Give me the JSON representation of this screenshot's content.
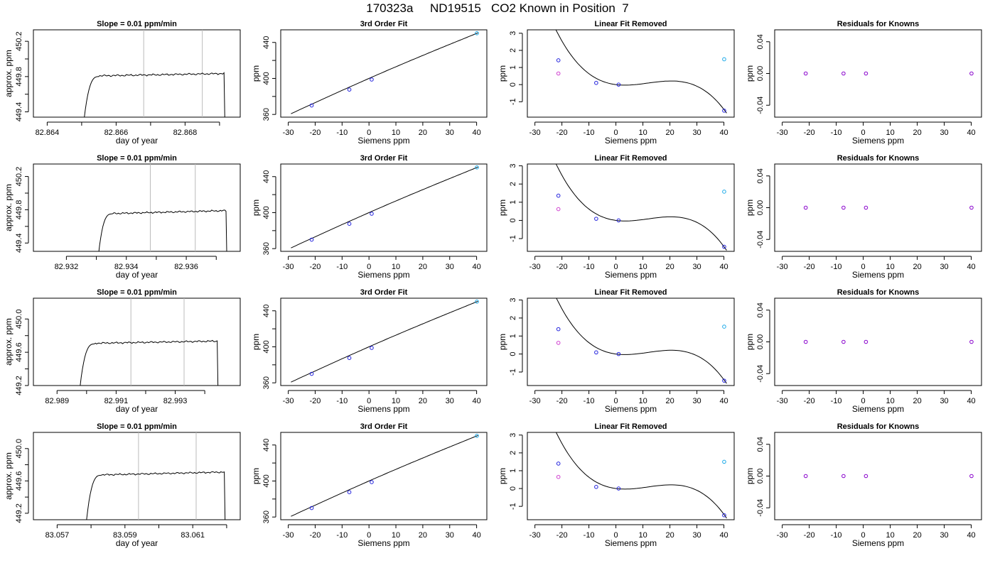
{
  "page": {
    "title": "170323a     ND19515   CO2 Known in Position  7"
  },
  "colors": {
    "axis": "#000000",
    "line": "#000000",
    "vline": "#bbbbbb",
    "point_blue": "#2222dd",
    "point_magenta": "#d040d0",
    "point_cyan": "#18a8e8",
    "point_purple": "#8800cc"
  },
  "chart_data": [
    {
      "panel": "timeseries-1",
      "type": "line",
      "title": "Slope =  0.01  ppm/min",
      "xlabel": "day of year",
      "ylabel": "approx. ppm",
      "xlim": [
        82.8636,
        82.8696
      ],
      "ylim": [
        449.34,
        450.33
      ],
      "xticks": [
        82.864,
        82.865,
        82.866,
        82.867,
        82.868,
        82.869
      ],
      "xtick_labels": [
        "82.864",
        "",
        "82.866",
        "",
        "82.868",
        ""
      ],
      "yticks": [
        449.4,
        449.6,
        449.8,
        450.0,
        450.2
      ],
      "ytick_labels": [
        "449.4",
        "",
        "449.8",
        "",
        "450.2"
      ],
      "vlines": [
        82.8668,
        82.8685
      ],
      "x_start": 82.865,
      "x_end": 82.8692,
      "plateau": 449.82,
      "drift": 0.03,
      "grid": false
    },
    {
      "panel": "fit-1",
      "type": "scatter",
      "title": "3rd Order Fit",
      "xlabel": "Siemens ppm",
      "ylabel": "ppm",
      "xlim": [
        -32.8,
        43.8
      ],
      "ylim": [
        357,
        454
      ],
      "xticks": [
        -30,
        -20,
        -10,
        0,
        10,
        20,
        30,
        40
      ],
      "yticks": [
        360,
        380,
        400,
        420,
        440
      ],
      "ytick_labels": [
        "360",
        "",
        "400",
        "",
        "440"
      ],
      "points": [
        {
          "x": -21.3,
          "y": 370.0,
          "color": "blue"
        },
        {
          "x": -7.3,
          "y": 387.6,
          "color": "blue"
        },
        {
          "x": 1.0,
          "y": 398.8,
          "color": "blue"
        },
        {
          "x": 40.1,
          "y": 450.2,
          "color": "cyan"
        }
      ],
      "curve": {
        "x0": -29.0,
        "x1": 40.5,
        "y_at_x0": 360.8,
        "y_at_x1": 450.6
      }
    },
    {
      "panel": "linear-removed-1",
      "type": "scatter",
      "title": "Linear Fit Removed",
      "xlabel": "Siemens ppm",
      "ylabel": "ppm",
      "xlim": [
        -32.8,
        43.8
      ],
      "ylim": [
        -1.9,
        3.2
      ],
      "xticks": [
        -30,
        -20,
        -10,
        0,
        10,
        20,
        30,
        40
      ],
      "yticks": [
        -1,
        0,
        1,
        2,
        3
      ],
      "points": [
        {
          "x": -21.3,
          "y": 1.42,
          "color": "blue"
        },
        {
          "x": -21.3,
          "y": 0.65,
          "color": "magenta"
        },
        {
          "x": -7.3,
          "y": 0.1,
          "color": "blue"
        },
        {
          "x": 1.0,
          "y": 0.0,
          "color": "blue"
        },
        {
          "x": 40.1,
          "y": 1.48,
          "color": "cyan"
        },
        {
          "x": 40.1,
          "y": -1.52,
          "color": "blue"
        }
      ],
      "curve": {
        "x0": -29.0,
        "x1": 41.0,
        "coef": [
          0.0,
          -0.0198,
          0.00345,
          -9.65e-05
        ]
      }
    },
    {
      "panel": "residuals-1",
      "type": "scatter",
      "title": "Residuals for Knowns",
      "xlabel": "Siemens ppm",
      "ylabel": "ppm",
      "xlim": [
        -32.8,
        43.8
      ],
      "ylim": [
        -0.055,
        0.055
      ],
      "xticks": [
        -30,
        -20,
        -10,
        0,
        10,
        20,
        30,
        40
      ],
      "yticks": [
        -0.04,
        0.0,
        0.04
      ],
      "ytick_labels": [
        "-0.04",
        "0.00",
        "0.04"
      ],
      "points": [
        {
          "x": -21.3,
          "y": 0.0,
          "color": "purple"
        },
        {
          "x": -7.3,
          "y": 0.0,
          "color": "purple"
        },
        {
          "x": 1.0,
          "y": 0.0,
          "color": "purple"
        },
        {
          "x": 40.1,
          "y": 0.0,
          "color": "purple"
        }
      ]
    },
    {
      "panel": "timeseries-2",
      "type": "line",
      "title": "Slope =  0.01  ppm/min",
      "xlabel": "day of year",
      "ylabel": "approx. ppm",
      "xlim": [
        82.9309,
        82.9378
      ],
      "ylim": [
        449.3,
        450.35
      ],
      "xticks": [
        82.932,
        82.933,
        82.934,
        82.935,
        82.936,
        82.937
      ],
      "xtick_labels": [
        "82.932",
        "",
        "82.934",
        "",
        "82.936",
        ""
      ],
      "yticks": [
        449.4,
        449.6,
        449.8,
        450.0,
        450.2
      ],
      "ytick_labels": [
        "449.4",
        "",
        "449.8",
        "",
        "450.2"
      ],
      "vlines": [
        82.9348,
        82.9363
      ],
      "x_start": 82.933,
      "x_end": 82.9374,
      "plateau": 449.77,
      "drift": 0.04,
      "grid": false
    },
    {
      "panel": "fit-2",
      "type": "scatter",
      "title": "3rd Order Fit",
      "xlabel": "Siemens ppm",
      "ylabel": "ppm",
      "xlim": [
        -32.8,
        43.8
      ],
      "ylim": [
        357,
        454
      ],
      "xticks": [
        -30,
        -20,
        -10,
        0,
        10,
        20,
        30,
        40
      ],
      "yticks": [
        360,
        380,
        400,
        420,
        440
      ],
      "ytick_labels": [
        "360",
        "",
        "400",
        "",
        "440"
      ],
      "points": [
        {
          "x": -21.3,
          "y": 370.0,
          "color": "blue"
        },
        {
          "x": -7.3,
          "y": 387.6,
          "color": "blue"
        },
        {
          "x": 1.0,
          "y": 398.8,
          "color": "blue"
        },
        {
          "x": 40.1,
          "y": 450.2,
          "color": "cyan"
        }
      ],
      "curve": {
        "x0": -29.0,
        "x1": 40.5,
        "y_at_x0": 360.8,
        "y_at_x1": 450.6
      }
    },
    {
      "panel": "linear-removed-2",
      "type": "scatter",
      "title": "Linear Fit Removed",
      "xlabel": "Siemens ppm",
      "ylabel": "ppm",
      "xlim": [
        -32.8,
        43.8
      ],
      "ylim": [
        -1.7,
        3.1
      ],
      "xticks": [
        -30,
        -20,
        -10,
        0,
        10,
        20,
        30,
        40
      ],
      "yticks": [
        -1,
        0,
        1,
        2,
        3
      ],
      "points": [
        {
          "x": -21.3,
          "y": 1.36,
          "color": "blue"
        },
        {
          "x": -21.3,
          "y": 0.62,
          "color": "magenta"
        },
        {
          "x": -7.3,
          "y": 0.09,
          "color": "blue"
        },
        {
          "x": 1.0,
          "y": 0.0,
          "color": "blue"
        },
        {
          "x": 40.1,
          "y": 1.58,
          "color": "cyan"
        },
        {
          "x": 40.1,
          "y": -1.45,
          "color": "blue"
        }
      ],
      "curve": {
        "x0": -29.0,
        "x1": 41.0,
        "coef": [
          0.0,
          -0.0195,
          0.00335,
          -9.4e-05
        ]
      }
    },
    {
      "panel": "residuals-2",
      "type": "scatter",
      "title": "Residuals for Knowns",
      "xlabel": "Siemens ppm",
      "ylabel": "ppm",
      "xlim": [
        -32.8,
        43.8
      ],
      "ylim": [
        -0.055,
        0.055
      ],
      "xticks": [
        -30,
        -20,
        -10,
        0,
        10,
        20,
        30,
        40
      ],
      "yticks": [
        -0.04,
        0.0,
        0.04
      ],
      "ytick_labels": [
        "-0.04",
        "0.00",
        "0.04"
      ],
      "points": [
        {
          "x": -21.3,
          "y": 0.0,
          "color": "purple"
        },
        {
          "x": -7.3,
          "y": 0.0,
          "color": "purple"
        },
        {
          "x": 1.0,
          "y": 0.0,
          "color": "purple"
        },
        {
          "x": 40.1,
          "y": 0.0,
          "color": "purple"
        }
      ]
    },
    {
      "panel": "timeseries-3",
      "type": "line",
      "title": "Slope =  0.01  ppm/min",
      "xlabel": "day of year",
      "ylabel": "approx. ppm",
      "xlim": [
        82.9882,
        82.9952
      ],
      "ylim": [
        449.2,
        450.25
      ],
      "xticks": [
        82.989,
        82.99,
        82.991,
        82.992,
        82.993,
        82.994
      ],
      "xtick_labels": [
        "82.989",
        "",
        "82.991",
        "",
        "82.993",
        ""
      ],
      "yticks": [
        449.2,
        449.4,
        449.6,
        449.8,
        450.0
      ],
      "ytick_labels": [
        "449.2",
        "",
        "449.6",
        "",
        "450.0"
      ],
      "vlines": [
        82.9915,
        82.9933
      ],
      "x_start": 82.9897,
      "x_end": 82.9945,
      "plateau": 449.72,
      "drift": 0.03,
      "grid": false
    },
    {
      "panel": "fit-3",
      "type": "scatter",
      "title": "3rd Order Fit",
      "xlabel": "Siemens ppm",
      "ylabel": "ppm",
      "xlim": [
        -32.8,
        43.8
      ],
      "ylim": [
        357,
        454
      ],
      "xticks": [
        -30,
        -20,
        -10,
        0,
        10,
        20,
        30,
        40
      ],
      "yticks": [
        360,
        380,
        400,
        420,
        440
      ],
      "ytick_labels": [
        "360",
        "",
        "400",
        "",
        "440"
      ],
      "points": [
        {
          "x": -21.3,
          "y": 370.0,
          "color": "blue"
        },
        {
          "x": -7.3,
          "y": 387.6,
          "color": "blue"
        },
        {
          "x": 1.0,
          "y": 398.8,
          "color": "blue"
        },
        {
          "x": 40.1,
          "y": 450.2,
          "color": "cyan"
        }
      ],
      "curve": {
        "x0": -29.0,
        "x1": 40.5,
        "y_at_x0": 360.8,
        "y_at_x1": 450.6
      }
    },
    {
      "panel": "linear-removed-3",
      "type": "scatter",
      "title": "Linear Fit Removed",
      "xlabel": "Siemens ppm",
      "ylabel": "ppm",
      "xlim": [
        -32.8,
        43.8
      ],
      "ylim": [
        -1.75,
        3.1
      ],
      "xticks": [
        -30,
        -20,
        -10,
        0,
        10,
        20,
        30,
        40
      ],
      "yticks": [
        -1,
        0,
        1,
        2,
        3
      ],
      "points": [
        {
          "x": -21.3,
          "y": 1.38,
          "color": "blue"
        },
        {
          "x": -21.3,
          "y": 0.62,
          "color": "magenta"
        },
        {
          "x": -7.3,
          "y": 0.09,
          "color": "blue"
        },
        {
          "x": 1.0,
          "y": 0.0,
          "color": "blue"
        },
        {
          "x": 40.1,
          "y": 1.52,
          "color": "cyan"
        },
        {
          "x": 40.1,
          "y": -1.48,
          "color": "blue"
        }
      ],
      "curve": {
        "x0": -29.0,
        "x1": 41.0,
        "coef": [
          0.0,
          -0.0196,
          0.0034,
          -9.5e-05
        ]
      }
    },
    {
      "panel": "residuals-3",
      "type": "scatter",
      "title": "Residuals for Knowns",
      "xlabel": "Siemens ppm",
      "ylabel": "ppm",
      "xlim": [
        -32.8,
        43.8
      ],
      "ylim": [
        -0.055,
        0.055
      ],
      "xticks": [
        -30,
        -20,
        -10,
        0,
        10,
        20,
        30,
        40
      ],
      "yticks": [
        -0.04,
        0.0,
        0.04
      ],
      "ytick_labels": [
        "-0.04",
        "0.00",
        "0.04"
      ],
      "points": [
        {
          "x": -21.3,
          "y": 0.0,
          "color": "purple"
        },
        {
          "x": -7.3,
          "y": 0.0,
          "color": "purple"
        },
        {
          "x": 1.0,
          "y": 0.0,
          "color": "purple"
        },
        {
          "x": 40.1,
          "y": 0.0,
          "color": "purple"
        }
      ]
    },
    {
      "panel": "timeseries-4",
      "type": "line",
      "title": "Slope =  0.01  ppm/min",
      "xlabel": "day of year",
      "ylabel": "approx. ppm",
      "xlim": [
        83.0563,
        83.0624
      ],
      "ylim": [
        449.12,
        450.2
      ],
      "xticks": [
        83.057,
        83.058,
        83.059,
        83.06,
        83.061,
        83.062
      ],
      "xtick_labels": [
        "83.057",
        "",
        "83.059",
        "",
        "83.061",
        ""
      ],
      "yticks": [
        449.2,
        449.4,
        449.6,
        449.8,
        450.0
      ],
      "ytick_labels": [
        "449.2",
        "",
        "449.6",
        "",
        "450.0"
      ],
      "vlines": [
        83.0594,
        83.0611
      ],
      "x_start": 83.0578,
      "x_end": 83.062,
      "plateau": 449.69,
      "drift": 0.04,
      "grid": false
    },
    {
      "panel": "fit-4",
      "type": "scatter",
      "title": "3rd Order Fit",
      "xlabel": "Siemens ppm",
      "ylabel": "ppm",
      "xlim": [
        -32.8,
        43.8
      ],
      "ylim": [
        357,
        454
      ],
      "xticks": [
        -30,
        -20,
        -10,
        0,
        10,
        20,
        30,
        40
      ],
      "yticks": [
        360,
        380,
        400,
        420,
        440
      ],
      "ytick_labels": [
        "360",
        "",
        "400",
        "",
        "440"
      ],
      "points": [
        {
          "x": -21.3,
          "y": 370.0,
          "color": "blue"
        },
        {
          "x": -7.3,
          "y": 387.6,
          "color": "blue"
        },
        {
          "x": 1.0,
          "y": 398.8,
          "color": "blue"
        },
        {
          "x": 40.1,
          "y": 450.2,
          "color": "cyan"
        }
      ],
      "curve": {
        "x0": -29.0,
        "x1": 40.5,
        "y_at_x0": 360.8,
        "y_at_x1": 450.6
      }
    },
    {
      "panel": "linear-removed-4",
      "type": "scatter",
      "title": "Linear Fit Removed",
      "xlabel": "Siemens ppm",
      "ylabel": "ppm",
      "xlim": [
        -32.8,
        43.8
      ],
      "ylim": [
        -1.75,
        3.15
      ],
      "xticks": [
        -30,
        -20,
        -10,
        0,
        10,
        20,
        30,
        40
      ],
      "yticks": [
        -1,
        0,
        1,
        2,
        3
      ],
      "points": [
        {
          "x": -21.3,
          "y": 1.4,
          "color": "blue"
        },
        {
          "x": -21.3,
          "y": 0.65,
          "color": "magenta"
        },
        {
          "x": -7.3,
          "y": 0.09,
          "color": "blue"
        },
        {
          "x": 1.0,
          "y": 0.0,
          "color": "blue"
        },
        {
          "x": 40.1,
          "y": 1.5,
          "color": "cyan"
        },
        {
          "x": 40.1,
          "y": -1.5,
          "color": "blue"
        }
      ],
      "curve": {
        "x0": -29.0,
        "x1": 41.0,
        "coef": [
          0.0,
          -0.0197,
          0.00342,
          -9.58e-05
        ]
      }
    },
    {
      "panel": "residuals-4",
      "type": "scatter",
      "title": "Residuals for Knowns",
      "xlabel": "Siemens ppm",
      "ylabel": "ppm",
      "xlim": [
        -32.8,
        43.8
      ],
      "ylim": [
        -0.055,
        0.055
      ],
      "xticks": [
        -30,
        -20,
        -10,
        0,
        10,
        20,
        30,
        40
      ],
      "yticks": [
        -0.04,
        0.0,
        0.04
      ],
      "ytick_labels": [
        "-0.04",
        "0.00",
        "0.04"
      ],
      "points": [
        {
          "x": -21.3,
          "y": 0.0,
          "color": "purple"
        },
        {
          "x": -7.3,
          "y": 0.0,
          "color": "purple"
        },
        {
          "x": 1.0,
          "y": 0.0,
          "color": "purple"
        },
        {
          "x": 40.1,
          "y": 0.0,
          "color": "purple"
        }
      ]
    }
  ]
}
